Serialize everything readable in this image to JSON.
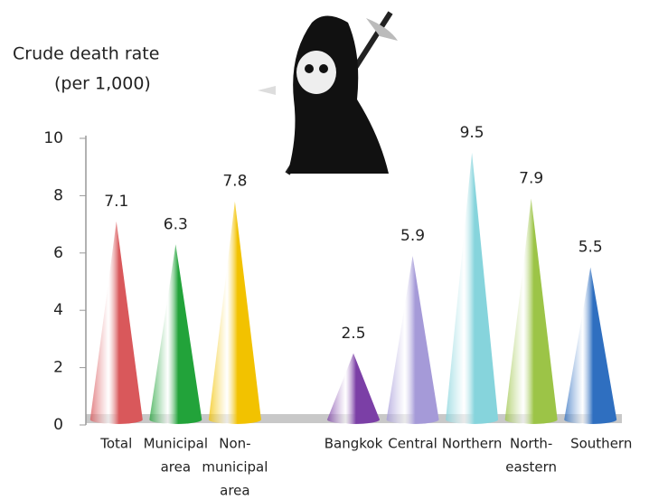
{
  "chart_data": {
    "type": "cone",
    "ylabel": [
      "Crude death rate",
      "(per 1,000)"
    ],
    "categories": [
      [
        "Total"
      ],
      [
        "Municipal",
        "area"
      ],
      [
        "Non-",
        "municipal",
        "area"
      ],
      null,
      [
        "Bangkok"
      ],
      [
        "Central"
      ],
      [
        "Northern"
      ],
      [
        "North-",
        "eastern"
      ],
      [
        "Southern"
      ]
    ],
    "values": [
      7.1,
      6.3,
      7.8,
      null,
      2.5,
      5.9,
      9.5,
      7.9,
      5.5
    ],
    "colors": [
      "#d9585b",
      "#22a33a",
      "#f2c200",
      null,
      "#7b3fa6",
      "#a59ad8",
      "#86d4dc",
      "#9cc447",
      "#2f6fc0"
    ],
    "ylim": [
      0,
      10
    ],
    "yticks": [
      0,
      2,
      4,
      6,
      8,
      10
    ]
  }
}
